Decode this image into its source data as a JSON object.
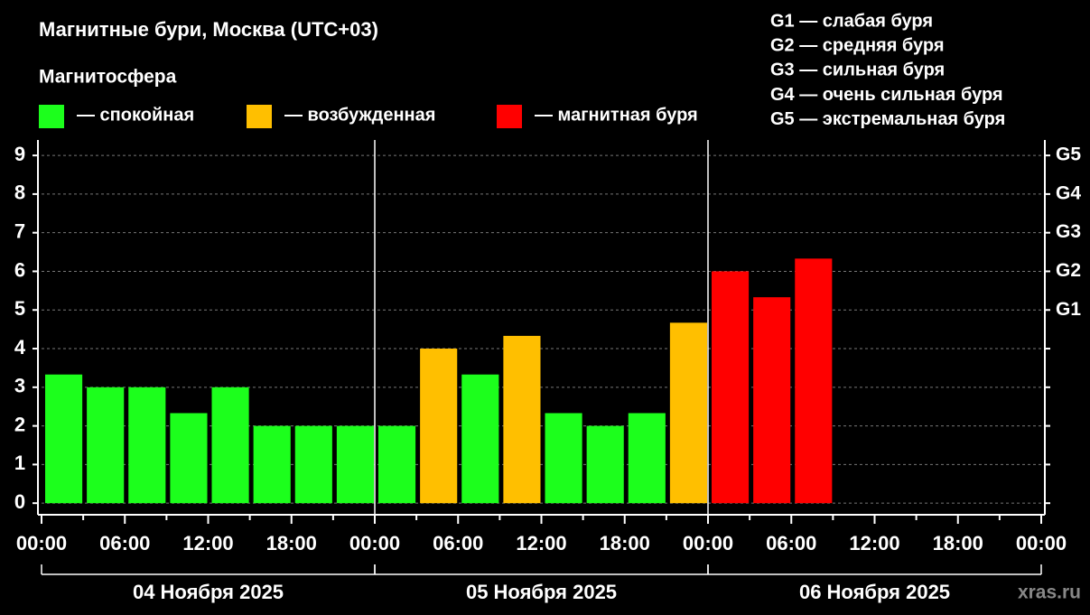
{
  "chart_data": {
    "type": "bar",
    "title": "Магнитные бури, Москва (UTC+03)",
    "subtitle": "Магнитосфера",
    "scale_notes": [
      "G1 — слабая буря",
      "G2 — средняя буря",
      "G3 — сильная буря",
      "G4 — очень сильная буря",
      "G5 — экстремальная буря"
    ],
    "x": [
      0,
      3,
      6,
      9,
      12,
      15,
      18,
      21,
      24,
      27,
      30,
      33,
      36,
      39,
      42,
      45,
      48,
      51,
      54,
      57,
      60,
      63,
      66,
      69
    ],
    "xlim": [
      0,
      72
    ],
    "xticks": [
      {
        "value": 0,
        "label": "00:00"
      },
      {
        "value": 6,
        "label": "06:00"
      },
      {
        "value": 12,
        "label": "12:00"
      },
      {
        "value": 18,
        "label": "18:00"
      },
      {
        "value": 24,
        "label": "00:00"
      },
      {
        "value": 30,
        "label": "06:00"
      },
      {
        "value": 36,
        "label": "12:00"
      },
      {
        "value": 42,
        "label": "18:00"
      },
      {
        "value": 48,
        "label": "00:00"
      },
      {
        "value": 54,
        "label": "06:00"
      },
      {
        "value": 60,
        "label": "12:00"
      },
      {
        "value": 66,
        "label": "18:00"
      },
      {
        "value": 72,
        "label": "00:00"
      }
    ],
    "days": [
      {
        "label": "04 Ноября 2025",
        "start": 0,
        "end": 24
      },
      {
        "label": "05 Ноября 2025",
        "start": 24,
        "end": 48
      },
      {
        "label": "06 Ноября 2025",
        "start": 48,
        "end": 72
      }
    ],
    "ylim": [
      -0.3,
      9.4
    ],
    "yticks": [
      0,
      1,
      2,
      3,
      4,
      5,
      6,
      7,
      8,
      9
    ],
    "y2ticks": [
      {
        "value": 5,
        "label": "G1"
      },
      {
        "value": 6,
        "label": "G2"
      },
      {
        "value": 7,
        "label": "G3"
      },
      {
        "value": 8,
        "label": "G4"
      },
      {
        "value": 9,
        "label": "G5"
      }
    ],
    "grid": true,
    "series": [
      {
        "name": "— спокойная",
        "color": "#1cff1c",
        "values": [
          3.33,
          3,
          3,
          2.33,
          3,
          2,
          2,
          2,
          2,
          null,
          3.33,
          null,
          2.33,
          2,
          2.33,
          null,
          null,
          null,
          null,
          null,
          null,
          null,
          null,
          null
        ]
      },
      {
        "name": "— возбужденная",
        "color": "#ffbf00",
        "values": [
          null,
          null,
          null,
          null,
          null,
          null,
          null,
          null,
          null,
          4,
          null,
          4.33,
          null,
          null,
          null,
          4.67,
          null,
          null,
          null,
          null,
          null,
          null,
          null,
          null
        ]
      },
      {
        "name": "— магнитная буря",
        "color": "#ff0000",
        "values": [
          null,
          null,
          null,
          null,
          null,
          null,
          null,
          null,
          null,
          null,
          null,
          null,
          null,
          null,
          null,
          null,
          6,
          5.33,
          6.33,
          null,
          null,
          null,
          null,
          null
        ]
      }
    ],
    "watermark": "xras.ru"
  }
}
